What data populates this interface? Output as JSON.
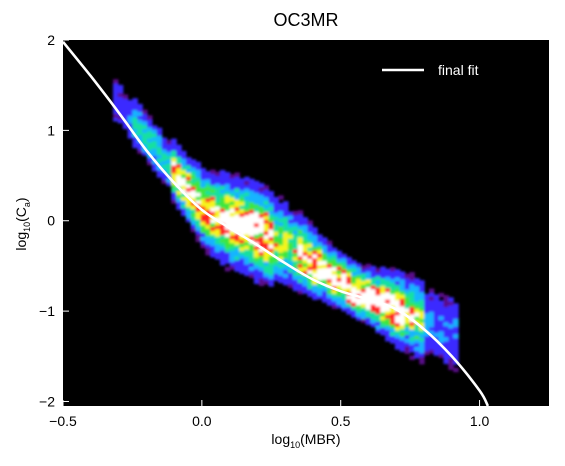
{
  "chart_data": {
    "type": "heatmap",
    "title": "OC3MR",
    "xlabel": {
      "base": "log",
      "sub": "10",
      "main": "(MBR)"
    },
    "ylabel": {
      "base": "log",
      "sub": "10",
      "main": "(C",
      "sub2": "a",
      "close": ")"
    },
    "xlim": [
      -0.5,
      1.25
    ],
    "ylim": [
      -2.05,
      2.0
    ],
    "x_ticks": [
      -0.5,
      0.0,
      0.5,
      1.0
    ],
    "x_tick_labels": [
      "−0.5",
      "0.0",
      "0.5",
      "1.0"
    ],
    "y_ticks": [
      2,
      1,
      0,
      -1,
      -2
    ],
    "y_tick_labels": [
      "2",
      "1",
      "0",
      "−1",
      "−2"
    ],
    "background_color": "#000000",
    "colormap": [
      "#5a0a8a",
      "#3b2bff",
      "#18b4ff",
      "#19e0a0",
      "#3ce63c",
      "#f5f51e",
      "#ff2020",
      "#ffffff"
    ],
    "density_axis": {
      "center_line": [
        [
          -0.2,
          0.9
        ],
        [
          0.0,
          0.12
        ],
        [
          0.3,
          -0.28
        ],
        [
          0.55,
          -0.78
        ],
        [
          0.78,
          -1.1
        ]
      ]
    },
    "hotspots": [
      {
        "x": 0.1,
        "y": -0.05,
        "level": 7
      },
      {
        "x": 0.18,
        "y": 0.02,
        "level": 6
      },
      {
        "x": 0.57,
        "y": -0.85,
        "level": 7
      },
      {
        "x": 0.64,
        "y": -0.9,
        "level": 7
      },
      {
        "x": 0.43,
        "y": -0.6,
        "level": 6
      },
      {
        "x": 0.72,
        "y": -1.05,
        "level": 5
      }
    ],
    "fit": {
      "name": "final fit",
      "x": [
        -0.5,
        -0.4,
        -0.3,
        -0.2,
        -0.1,
        0.0,
        0.1,
        0.2,
        0.3,
        0.4,
        0.5,
        0.6,
        0.7,
        0.8,
        0.9,
        1.0,
        1.03
      ],
      "y": [
        1.98,
        1.6,
        1.2,
        0.78,
        0.42,
        0.12,
        -0.08,
        -0.27,
        -0.47,
        -0.65,
        -0.78,
        -0.87,
        -0.98,
        -1.2,
        -1.5,
        -1.88,
        -2.05
      ],
      "color": "#ffffff"
    },
    "legend": {
      "placement": "top-right",
      "entries": [
        "final fit"
      ]
    },
    "grid": false
  }
}
